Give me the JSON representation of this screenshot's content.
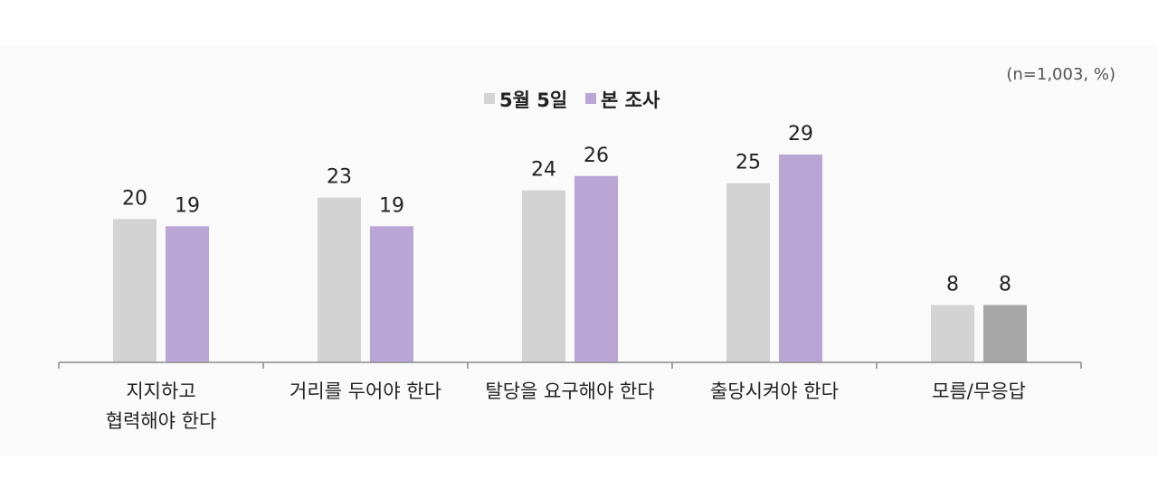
{
  "chart_data": {
    "type": "bar",
    "note": "(n=1,003, %)",
    "categories": [
      [
        "지지하고",
        "협력해야 한다"
      ],
      [
        "거리를 두어야 한다"
      ],
      [
        "탈당을 요구해야 한다"
      ],
      [
        "출당시켜야 한다"
      ],
      [
        "모름/무응답"
      ]
    ],
    "series": [
      {
        "name": "5월 5일",
        "values": [
          20,
          23,
          24,
          25,
          8
        ],
        "color": "#d3d3d3"
      },
      {
        "name": "본 조사",
        "values": [
          19,
          19,
          26,
          29,
          8
        ],
        "color": "#b9a6d5"
      }
    ],
    "highlight_color": "#a6a6a6",
    "ylim": [
      0,
      29
    ],
    "grid": false,
    "legend": "top-center"
  }
}
